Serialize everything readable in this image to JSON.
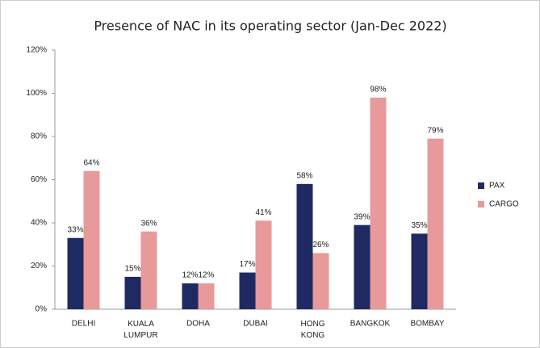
{
  "chart_data": {
    "type": "bar",
    "title": "Presence of NAC in its operating sector (Jan-Dec 2022)",
    "categories": [
      "DELHI",
      "KUALA LUMPUR",
      "DOHA",
      "DUBAI",
      "HONG KONG",
      "BANGKOK",
      "BOMBAY"
    ],
    "series": [
      {
        "name": "PAX",
        "color": "#1f2a63",
        "values": [
          33,
          15,
          12,
          17,
          58,
          39,
          35
        ],
        "value_labels": [
          "33%",
          "15%",
          "12%",
          "17%",
          "58%",
          "39%",
          "35%"
        ]
      },
      {
        "name": "CARGO",
        "color": "#e8999a",
        "values": [
          64,
          36,
          12,
          41,
          26,
          98,
          79
        ],
        "value_labels": [
          "64%",
          "36%",
          "12%",
          "41%",
          "26%",
          "98%",
          "79%"
        ]
      }
    ],
    "ylim": [
      0,
      120
    ],
    "yticks": [
      {
        "value": 0,
        "label": "0%"
      },
      {
        "value": 20,
        "label": "20%"
      },
      {
        "value": 40,
        "label": "40%"
      },
      {
        "value": 60,
        "label": "60%"
      },
      {
        "value": 80,
        "label": "80%"
      },
      {
        "value": 100,
        "label": "100%"
      },
      {
        "value": 120,
        "label": "120%"
      }
    ],
    "legend": "right"
  }
}
